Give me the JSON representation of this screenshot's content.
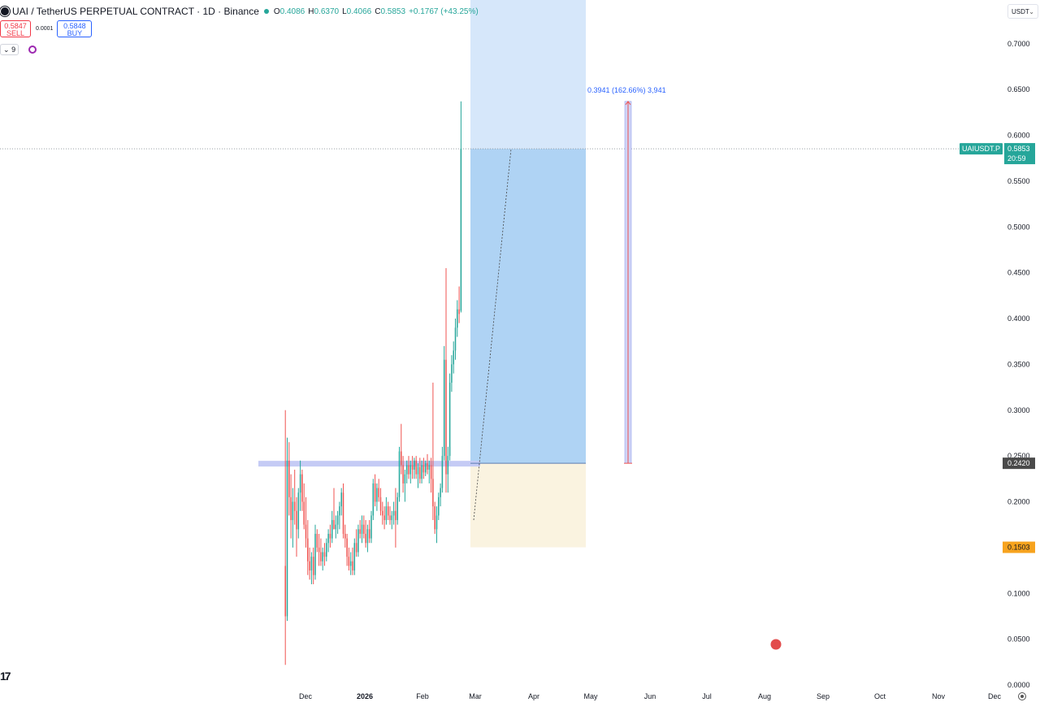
{
  "legend": {
    "title": "UAI / TetherUS PERPETUAL CONTRACT · 1D · Binance",
    "open_label": "O",
    "open_value": "0.4086",
    "high_label": "H",
    "high_value": "0.6370",
    "low_label": "L",
    "low_value": "0.4066",
    "close_label": "C",
    "close_value": "0.5853",
    "change": "+0.1767 (+43.25%)"
  },
  "trade": {
    "sell_price": "0.5847",
    "sell_label": "SELL",
    "spread": "0.0001",
    "buy_price": "0.5848",
    "buy_label": "BUY"
  },
  "indicator": {
    "collapse_label": "9"
  },
  "currency_button": "USDT",
  "price_axis": {
    "ticks": [
      "0.7000",
      "0.6500",
      "0.6000",
      "0.5500",
      "0.5000",
      "0.4500",
      "0.4000",
      "0.3500",
      "0.3000",
      "0.2500",
      "0.2000",
      "0.1500",
      "0.1000",
      "0.0500",
      "0.0000"
    ],
    "symbol_label": "UAIUSDT.P",
    "last_price": "0.5853",
    "countdown": "20:59",
    "entry_label": "0.2420",
    "stop_label": "0.1503"
  },
  "time_axis": {
    "ticks": [
      "Dec",
      "2026",
      "Feb",
      "Mar",
      "Apr",
      "May",
      "Jun",
      "Jul",
      "Aug",
      "Sep",
      "Oct",
      "Nov",
      "Dec"
    ]
  },
  "measure_label": "0.3941 (162.66%) 3,941",
  "colors": {
    "up": "#26a69a",
    "down": "#ef5350",
    "profit_zone": "#bbd9f7",
    "profit_zone_light": "#d6e7fa",
    "loss_zone": "#faf3e0",
    "stop_tag": "#f7a31e",
    "entry_tag": "#4a4a4a",
    "last_tag": "#26a69a",
    "measure": "#2962ff",
    "red_dot": "#e24c4c"
  },
  "chart_data": {
    "type": "candlestick",
    "symbol": "UAIUSDT.P",
    "interval": "1D",
    "ylim": [
      0,
      0.72
    ],
    "x_range": [
      "2025-11-16",
      "2026-12-20"
    ],
    "candles": [
      {
        "d": "2025-11-20",
        "o": 0.13,
        "h": 0.3,
        "l": 0.022,
        "c": 0.075
      },
      {
        "d": "2025-11-21",
        "o": 0.075,
        "h": 0.27,
        "l": 0.07,
        "c": 0.245
      },
      {
        "d": "2025-11-22",
        "o": 0.245,
        "h": 0.265,
        "l": 0.185,
        "c": 0.205
      },
      {
        "d": "2025-11-23",
        "o": 0.205,
        "h": 0.23,
        "l": 0.16,
        "c": 0.18
      },
      {
        "d": "2025-11-24",
        "o": 0.18,
        "h": 0.215,
        "l": 0.15,
        "c": 0.2
      },
      {
        "d": "2025-11-25",
        "o": 0.2,
        "h": 0.235,
        "l": 0.175,
        "c": 0.19
      },
      {
        "d": "2025-11-26",
        "o": 0.19,
        "h": 0.205,
        "l": 0.14,
        "c": 0.17
      },
      {
        "d": "2025-11-27",
        "o": 0.17,
        "h": 0.215,
        "l": 0.16,
        "c": 0.21
      },
      {
        "d": "2025-11-28",
        "o": 0.21,
        "h": 0.245,
        "l": 0.19,
        "c": 0.23
      },
      {
        "d": "2025-11-29",
        "o": 0.23,
        "h": 0.235,
        "l": 0.19,
        "c": 0.2
      },
      {
        "d": "2025-11-30",
        "o": 0.2,
        "h": 0.22,
        "l": 0.17,
        "c": 0.175
      },
      {
        "d": "2025-12-01",
        "o": 0.175,
        "h": 0.205,
        "l": 0.15,
        "c": 0.16
      },
      {
        "d": "2025-12-02",
        "o": 0.16,
        "h": 0.18,
        "l": 0.12,
        "c": 0.135
      },
      {
        "d": "2025-12-03",
        "o": 0.135,
        "h": 0.15,
        "l": 0.115,
        "c": 0.125
      },
      {
        "d": "2025-12-04",
        "o": 0.125,
        "h": 0.145,
        "l": 0.11,
        "c": 0.14
      },
      {
        "d": "2025-12-05",
        "o": 0.14,
        "h": 0.15,
        "l": 0.11,
        "c": 0.12
      },
      {
        "d": "2025-12-06",
        "o": 0.12,
        "h": 0.175,
        "l": 0.115,
        "c": 0.165
      },
      {
        "d": "2025-12-07",
        "o": 0.165,
        "h": 0.17,
        "l": 0.145,
        "c": 0.15
      },
      {
        "d": "2025-12-08",
        "o": 0.15,
        "h": 0.165,
        "l": 0.13,
        "c": 0.145
      },
      {
        "d": "2025-12-09",
        "o": 0.145,
        "h": 0.16,
        "l": 0.13,
        "c": 0.135
      },
      {
        "d": "2025-12-10",
        "o": 0.135,
        "h": 0.15,
        "l": 0.125,
        "c": 0.145
      },
      {
        "d": "2025-12-11",
        "o": 0.145,
        "h": 0.155,
        "l": 0.13,
        "c": 0.14
      },
      {
        "d": "2025-12-12",
        "o": 0.14,
        "h": 0.16,
        "l": 0.135,
        "c": 0.155
      },
      {
        "d": "2025-12-13",
        "o": 0.155,
        "h": 0.17,
        "l": 0.145,
        "c": 0.165
      },
      {
        "d": "2025-12-14",
        "o": 0.165,
        "h": 0.175,
        "l": 0.15,
        "c": 0.16
      },
      {
        "d": "2025-12-15",
        "o": 0.16,
        "h": 0.19,
        "l": 0.155,
        "c": 0.18
      },
      {
        "d": "2025-12-16",
        "o": 0.18,
        "h": 0.215,
        "l": 0.17,
        "c": 0.17
      },
      {
        "d": "2025-12-17",
        "o": 0.17,
        "h": 0.185,
        "l": 0.16,
        "c": 0.175
      },
      {
        "d": "2025-12-18",
        "o": 0.175,
        "h": 0.19,
        "l": 0.165,
        "c": 0.185
      },
      {
        "d": "2025-12-19",
        "o": 0.185,
        "h": 0.2,
        "l": 0.17,
        "c": 0.195
      },
      {
        "d": "2025-12-20",
        "o": 0.195,
        "h": 0.215,
        "l": 0.185,
        "c": 0.21
      },
      {
        "d": "2025-12-21",
        "o": 0.21,
        "h": 0.22,
        "l": 0.16,
        "c": 0.165
      },
      {
        "d": "2025-12-22",
        "o": 0.165,
        "h": 0.175,
        "l": 0.15,
        "c": 0.16
      },
      {
        "d": "2025-12-23",
        "o": 0.16,
        "h": 0.165,
        "l": 0.13,
        "c": 0.14
      },
      {
        "d": "2025-12-24",
        "o": 0.14,
        "h": 0.15,
        "l": 0.125,
        "c": 0.13
      },
      {
        "d": "2025-12-25",
        "o": 0.13,
        "h": 0.145,
        "l": 0.12,
        "c": 0.135
      },
      {
        "d": "2025-12-26",
        "o": 0.135,
        "h": 0.15,
        "l": 0.12,
        "c": 0.125
      },
      {
        "d": "2025-12-27",
        "o": 0.125,
        "h": 0.16,
        "l": 0.12,
        "c": 0.155
      },
      {
        "d": "2025-12-28",
        "o": 0.155,
        "h": 0.17,
        "l": 0.14,
        "c": 0.145
      },
      {
        "d": "2025-12-29",
        "o": 0.145,
        "h": 0.175,
        "l": 0.14,
        "c": 0.17
      },
      {
        "d": "2025-12-30",
        "o": 0.17,
        "h": 0.18,
        "l": 0.16,
        "c": 0.165
      },
      {
        "d": "2025-12-31",
        "o": 0.165,
        "h": 0.185,
        "l": 0.155,
        "c": 0.175
      },
      {
        "d": "2026-01-01",
        "o": 0.175,
        "h": 0.185,
        "l": 0.16,
        "c": 0.165
      },
      {
        "d": "2026-01-02",
        "o": 0.165,
        "h": 0.18,
        "l": 0.15,
        "c": 0.155
      },
      {
        "d": "2026-01-03",
        "o": 0.155,
        "h": 0.175,
        "l": 0.145,
        "c": 0.17
      },
      {
        "d": "2026-01-04",
        "o": 0.17,
        "h": 0.18,
        "l": 0.155,
        "c": 0.16
      },
      {
        "d": "2026-01-05",
        "o": 0.16,
        "h": 0.19,
        "l": 0.155,
        "c": 0.185
      },
      {
        "d": "2026-01-06",
        "o": 0.185,
        "h": 0.225,
        "l": 0.18,
        "c": 0.22
      },
      {
        "d": "2026-01-07",
        "o": 0.22,
        "h": 0.23,
        "l": 0.195,
        "c": 0.2
      },
      {
        "d": "2026-01-08",
        "o": 0.2,
        "h": 0.22,
        "l": 0.19,
        "c": 0.215
      },
      {
        "d": "2026-01-09",
        "o": 0.215,
        "h": 0.225,
        "l": 0.2,
        "c": 0.205
      },
      {
        "d": "2026-01-10",
        "o": 0.205,
        "h": 0.215,
        "l": 0.185,
        "c": 0.19
      },
      {
        "d": "2026-01-11",
        "o": 0.19,
        "h": 0.2,
        "l": 0.175,
        "c": 0.185
      },
      {
        "d": "2026-01-12",
        "o": 0.185,
        "h": 0.195,
        "l": 0.17,
        "c": 0.18
      },
      {
        "d": "2026-01-13",
        "o": 0.18,
        "h": 0.205,
        "l": 0.175,
        "c": 0.195
      },
      {
        "d": "2026-01-14",
        "o": 0.195,
        "h": 0.2,
        "l": 0.18,
        "c": 0.185
      },
      {
        "d": "2026-01-15",
        "o": 0.185,
        "h": 0.195,
        "l": 0.175,
        "c": 0.18
      },
      {
        "d": "2026-01-16",
        "o": 0.18,
        "h": 0.19,
        "l": 0.17,
        "c": 0.185
      },
      {
        "d": "2026-01-17",
        "o": 0.185,
        "h": 0.2,
        "l": 0.175,
        "c": 0.19
      },
      {
        "d": "2026-01-18",
        "o": 0.19,
        "h": 0.215,
        "l": 0.15,
        "c": 0.18
      },
      {
        "d": "2026-01-19",
        "o": 0.18,
        "h": 0.21,
        "l": 0.175,
        "c": 0.205
      },
      {
        "d": "2026-01-20",
        "o": 0.205,
        "h": 0.26,
        "l": 0.2,
        "c": 0.255
      },
      {
        "d": "2026-01-21",
        "o": 0.255,
        "h": 0.285,
        "l": 0.23,
        "c": 0.24
      },
      {
        "d": "2026-01-22",
        "o": 0.24,
        "h": 0.25,
        "l": 0.21,
        "c": 0.22
      },
      {
        "d": "2026-01-23",
        "o": 0.22,
        "h": 0.235,
        "l": 0.2,
        "c": 0.23
      },
      {
        "d": "2026-01-24",
        "o": 0.23,
        "h": 0.245,
        "l": 0.22,
        "c": 0.24
      },
      {
        "d": "2026-01-25",
        "o": 0.24,
        "h": 0.25,
        "l": 0.225,
        "c": 0.23
      },
      {
        "d": "2026-01-26",
        "o": 0.23,
        "h": 0.245,
        "l": 0.22,
        "c": 0.24
      },
      {
        "d": "2026-01-27",
        "o": 0.24,
        "h": 0.25,
        "l": 0.225,
        "c": 0.235
      },
      {
        "d": "2026-01-28",
        "o": 0.235,
        "h": 0.248,
        "l": 0.225,
        "c": 0.245
      },
      {
        "d": "2026-01-29",
        "o": 0.245,
        "h": 0.25,
        "l": 0.225,
        "c": 0.23
      },
      {
        "d": "2026-01-30",
        "o": 0.23,
        "h": 0.242,
        "l": 0.215,
        "c": 0.238
      },
      {
        "d": "2026-01-31",
        "o": 0.238,
        "h": 0.248,
        "l": 0.22,
        "c": 0.225
      },
      {
        "d": "2026-02-01",
        "o": 0.225,
        "h": 0.245,
        "l": 0.22,
        "c": 0.24
      },
      {
        "d": "2026-02-02",
        "o": 0.24,
        "h": 0.248,
        "l": 0.225,
        "c": 0.232
      },
      {
        "d": "2026-02-03",
        "o": 0.232,
        "h": 0.245,
        "l": 0.228,
        "c": 0.242
      },
      {
        "d": "2026-02-04",
        "o": 0.242,
        "h": 0.252,
        "l": 0.23,
        "c": 0.235
      },
      {
        "d": "2026-02-05",
        "o": 0.235,
        "h": 0.245,
        "l": 0.22,
        "c": 0.24
      },
      {
        "d": "2026-02-06",
        "o": 0.24,
        "h": 0.248,
        "l": 0.21,
        "c": 0.225
      },
      {
        "d": "2026-02-07",
        "o": 0.225,
        "h": 0.33,
        "l": 0.18,
        "c": 0.195
      },
      {
        "d": "2026-02-08",
        "o": 0.195,
        "h": 0.2,
        "l": 0.165,
        "c": 0.17
      },
      {
        "d": "2026-02-09",
        "o": 0.17,
        "h": 0.195,
        "l": 0.155,
        "c": 0.185
      },
      {
        "d": "2026-02-10",
        "o": 0.185,
        "h": 0.21,
        "l": 0.18,
        "c": 0.205
      },
      {
        "d": "2026-02-11",
        "o": 0.205,
        "h": 0.22,
        "l": 0.195,
        "c": 0.215
      },
      {
        "d": "2026-02-12",
        "o": 0.215,
        "h": 0.26,
        "l": 0.21,
        "c": 0.25
      },
      {
        "d": "2026-02-13",
        "o": 0.25,
        "h": 0.37,
        "l": 0.245,
        "c": 0.355
      },
      {
        "d": "2026-02-14",
        "o": 0.355,
        "h": 0.455,
        "l": 0.21,
        "c": 0.23
      },
      {
        "d": "2026-02-15",
        "o": 0.23,
        "h": 0.26,
        "l": 0.21,
        "c": 0.25
      },
      {
        "d": "2026-02-16",
        "o": 0.25,
        "h": 0.34,
        "l": 0.245,
        "c": 0.33
      },
      {
        "d": "2026-02-17",
        "o": 0.33,
        "h": 0.36,
        "l": 0.32,
        "c": 0.35
      },
      {
        "d": "2026-02-18",
        "o": 0.35,
        "h": 0.375,
        "l": 0.34,
        "c": 0.365
      },
      {
        "d": "2026-02-19",
        "o": 0.365,
        "h": 0.4,
        "l": 0.355,
        "c": 0.39
      },
      {
        "d": "2026-02-20",
        "o": 0.39,
        "h": 0.42,
        "l": 0.38,
        "c": 0.41
      },
      {
        "d": "2026-02-21",
        "o": 0.41,
        "h": 0.435,
        "l": 0.395,
        "c": 0.405
      },
      {
        "d": "2026-02-22",
        "o": 0.4086,
        "h": 0.637,
        "l": 0.4066,
        "c": 0.5853
      }
    ]
  }
}
